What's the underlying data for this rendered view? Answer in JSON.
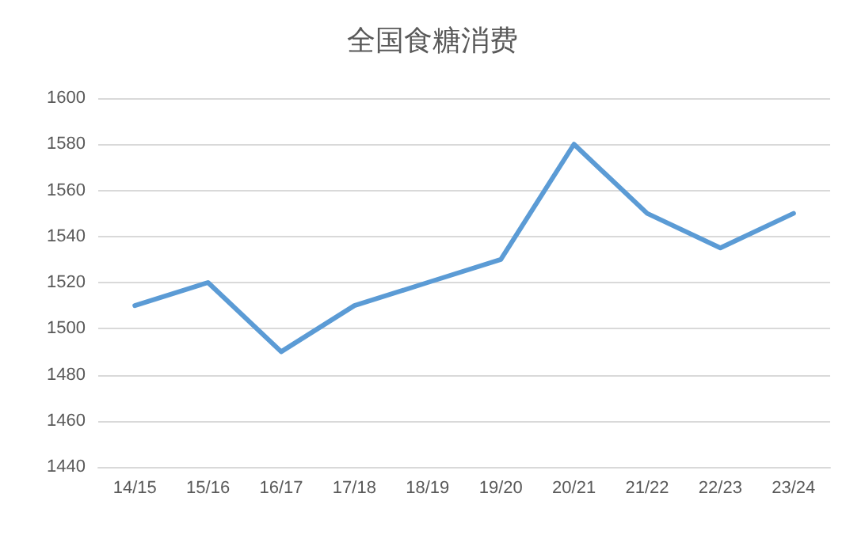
{
  "chart_data": {
    "type": "line",
    "title": "全国食糖消费",
    "categories": [
      "14/15",
      "15/16",
      "16/17",
      "17/18",
      "18/19",
      "19/20",
      "20/21",
      "21/22",
      "22/23",
      "23/24"
    ],
    "series": [
      {
        "color": "#5b9bd5",
        "values": [
          1510,
          1520,
          1490,
          1510,
          1520,
          1530,
          1580,
          1550,
          1535,
          1550
        ]
      }
    ],
    "ylim": [
      1440,
      1600
    ],
    "yticks": [
      1440,
      1460,
      1480,
      1500,
      1520,
      1540,
      1560,
      1580,
      1600
    ],
    "grid": "y",
    "marker": "none",
    "line_style": "solid"
  }
}
